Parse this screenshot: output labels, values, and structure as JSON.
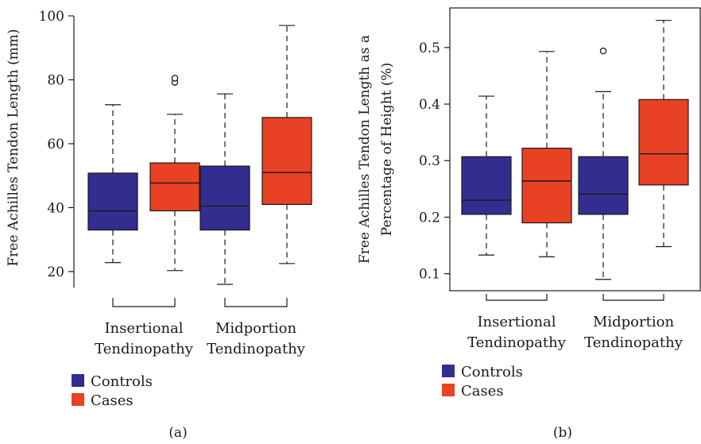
{
  "chart_data": [
    {
      "type": "box",
      "panel_label": "(a)",
      "ylabel": "Free Achilles Tendon Length (mm)",
      "ylim": [
        15,
        100
      ],
      "yticks": [
        20,
        40,
        60,
        80,
        100
      ],
      "groups": [
        {
          "label_lines": [
            "Insertional",
            "Tendinopathy"
          ]
        },
        {
          "label_lines": [
            "Midportion",
            "Tendinopathy"
          ]
        }
      ],
      "series": [
        {
          "name": "Controls",
          "color": "#332d8f",
          "boxes": [
            {
              "group": 0,
              "min": 22.8,
              "q1": 33.0,
              "median": 39.0,
              "q3": 50.8,
              "max": 72.2,
              "outliers": []
            },
            {
              "group": 1,
              "min": 16.0,
              "q1": 33.0,
              "median": 40.5,
              "q3": 53.0,
              "max": 75.6,
              "outliers": []
            }
          ]
        },
        {
          "name": "Cases",
          "color": "#e84123",
          "boxes": [
            {
              "group": 0,
              "min": 20.3,
              "q1": 39.0,
              "median": 47.7,
              "q3": 54.0,
              "max": 69.2,
              "outliers": [
                79.2,
                80.5
              ]
            },
            {
              "group": 1,
              "min": 22.5,
              "q1": 41.0,
              "median": 51.0,
              "q3": 68.2,
              "max": 97.0,
              "outliers": []
            }
          ]
        }
      ],
      "legend": [
        {
          "label": "Controls",
          "color": "#332d8f"
        },
        {
          "label": "Cases",
          "color": "#e84123"
        }
      ]
    },
    {
      "type": "box",
      "panel_label": "(b)",
      "ylabel_lines": [
        "Free Achilles Tendon Length as a",
        "Percentage of Height (%)"
      ],
      "ylim": [
        0.07,
        0.57
      ],
      "yticks": [
        0.1,
        0.2,
        0.3,
        0.4,
        0.5
      ],
      "groups": [
        {
          "label_lines": [
            "Insertional",
            "Tendinopathy"
          ]
        },
        {
          "label_lines": [
            "Midportion",
            "Tendinopathy"
          ]
        }
      ],
      "series": [
        {
          "name": "Controls",
          "color": "#332d8f",
          "boxes": [
            {
              "group": 0,
              "min": 0.133,
              "q1": 0.205,
              "median": 0.23,
              "q3": 0.307,
              "max": 0.414,
              "outliers": []
            },
            {
              "group": 1,
              "min": 0.09,
              "q1": 0.205,
              "median": 0.241,
              "q3": 0.307,
              "max": 0.422,
              "outliers": [
                0.494
              ]
            }
          ]
        },
        {
          "name": "Cases",
          "color": "#e84123",
          "boxes": [
            {
              "group": 0,
              "min": 0.13,
              "q1": 0.19,
              "median": 0.264,
              "q3": 0.322,
              "max": 0.493,
              "outliers": []
            },
            {
              "group": 1,
              "min": 0.148,
              "q1": 0.257,
              "median": 0.312,
              "q3": 0.408,
              "max": 0.548,
              "outliers": []
            }
          ]
        }
      ],
      "legend": [
        {
          "label": "Controls",
          "color": "#332d8f"
        },
        {
          "label": "Cases",
          "color": "#e84123"
        }
      ]
    }
  ]
}
